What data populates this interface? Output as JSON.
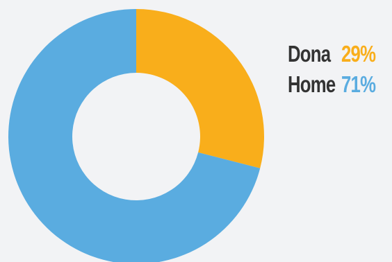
{
  "chart_data": {
    "type": "pie",
    "categories": [
      "Dona",
      "Home"
    ],
    "values": [
      29,
      71
    ],
    "value_labels": [
      "29%",
      "71%"
    ],
    "colors": [
      "#f9ae1b",
      "#5aace0"
    ],
    "title": "",
    "legend_placement": "right",
    "hole": "donut"
  },
  "colors": {
    "background": "#f2f3f5",
    "legend_name_text": "#333333"
  }
}
